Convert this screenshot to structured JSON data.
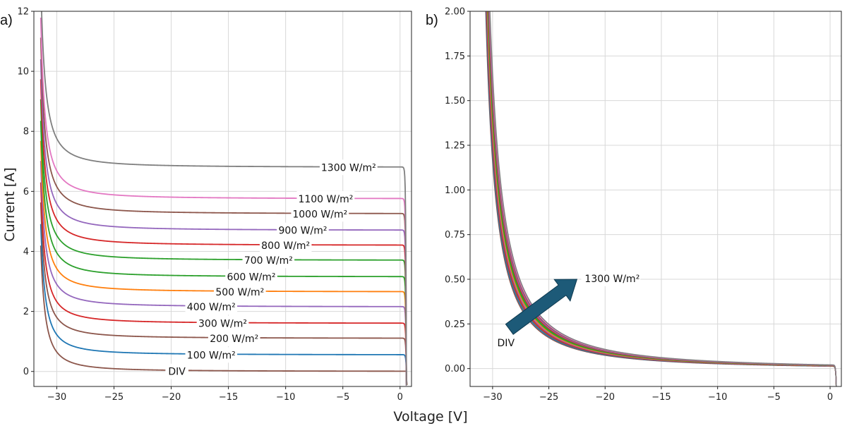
{
  "chart_data": [
    {
      "type": "line",
      "panel_label": "a)",
      "xlabel": "Voltage [V]",
      "ylabel": "Current [A]",
      "xlim": [
        -32,
        1
      ],
      "ylim": [
        -0.5,
        12
      ],
      "xticks": [
        -30,
        -25,
        -20,
        -15,
        -10,
        -5,
        0
      ],
      "xtick_labels": [
        "−30",
        "−25",
        "−20",
        "−15",
        "−10",
        "−5",
        "0"
      ],
      "yticks": [
        0,
        2,
        4,
        6,
        8,
        10,
        12
      ],
      "ytick_labels": [
        "0",
        "2",
        "4",
        "6",
        "8",
        "10",
        "12"
      ],
      "grid": true,
      "curve_model": {
        "breakdown_voltage": -32,
        "open_circuit_voltage": 0.55
      },
      "series": [
        {
          "name": "DIV",
          "label_text": "DIV",
          "plateau_current": 0.0,
          "color": "#8c564b",
          "label_at_voltage": -19.5
        },
        {
          "name": "100 W/m2",
          "label_text": "100 W/m²",
          "plateau_current": 0.55,
          "color": "#1f77b4",
          "label_at_voltage": -16.5
        },
        {
          "name": "200 W/m2",
          "label_text": "200 W/m²",
          "plateau_current": 1.1,
          "color": "#8c564b",
          "label_at_voltage": -14.5
        },
        {
          "name": "300 W/m2",
          "label_text": "300 W/m²",
          "plateau_current": 1.6,
          "color": "#d62728",
          "label_at_voltage": -15.5
        },
        {
          "name": "400 W/m2",
          "label_text": "400 W/m²",
          "plateau_current": 2.15,
          "color": "#9467bd",
          "label_at_voltage": -16.5
        },
        {
          "name": "500 W/m2",
          "label_text": "500 W/m²",
          "plateau_current": 2.65,
          "color": "#ff7f0e",
          "label_at_voltage": -14.0
        },
        {
          "name": "600 W/m2",
          "label_text": "600 W/m²",
          "plateau_current": 3.15,
          "color": "#2ca02c",
          "label_at_voltage": -13.0
        },
        {
          "name": "700 W/m2",
          "label_text": "700 W/m²",
          "plateau_current": 3.7,
          "color": "#2ca02c",
          "label_at_voltage": -11.5
        },
        {
          "name": "800 W/m2",
          "label_text": "800 W/m²",
          "plateau_current": 4.2,
          "color": "#d62728",
          "label_at_voltage": -10.0
        },
        {
          "name": "900 W/m2",
          "label_text": "900 W/m²",
          "plateau_current": 4.7,
          "color": "#9467bd",
          "label_at_voltage": -8.5
        },
        {
          "name": "1000 W/m2",
          "label_text": "1000 W/m²",
          "plateau_current": 5.25,
          "color": "#8c564b",
          "label_at_voltage": -7.0
        },
        {
          "name": "1100 W/m2",
          "label_text": "1100 W/m²",
          "plateau_current": 5.75,
          "color": "#e377c2",
          "label_at_voltage": -6.5
        },
        {
          "name": "1300 W/m2",
          "label_text": "1300 W/m²",
          "plateau_current": 6.8,
          "color": "#7f7f7f",
          "label_at_voltage": -4.5
        }
      ]
    },
    {
      "type": "line",
      "panel_label": "b)",
      "xlabel": "",
      "ylabel": "",
      "xlim": [
        -32,
        1
      ],
      "ylim": [
        -0.1,
        2.0
      ],
      "xticks": [
        -30,
        -25,
        -20,
        -15,
        -10,
        -5,
        0
      ],
      "xtick_labels": [
        "−30",
        "−25",
        "−20",
        "−15",
        "−10",
        "−5",
        "0"
      ],
      "yticks": [
        0,
        0.25,
        0.5,
        0.75,
        1.0,
        1.25,
        1.5,
        1.75,
        2.0
      ],
      "ytick_labels": [
        "0.00",
        "0.25",
        "0.50",
        "0.75",
        "1.00",
        "1.25",
        "1.50",
        "1.75",
        "2.00"
      ],
      "grid": true,
      "series_colors": [
        "#8c564b",
        "#1f77b4",
        "#8c564b",
        "#d62728",
        "#9467bd",
        "#ff7f0e",
        "#2ca02c",
        "#2ca02c",
        "#d62728",
        "#9467bd",
        "#8c564b",
        "#e377c2",
        "#7f7f7f"
      ],
      "annotations": {
        "arrow_from_label": "DIV",
        "arrow_to_label": "1300 W/m²",
        "arrow_color": "#1d5a78",
        "arrow_from_data": [
          -28.5,
          0.22
        ],
        "arrow_to_data": [
          -22.5,
          0.5
        ]
      }
    }
  ]
}
